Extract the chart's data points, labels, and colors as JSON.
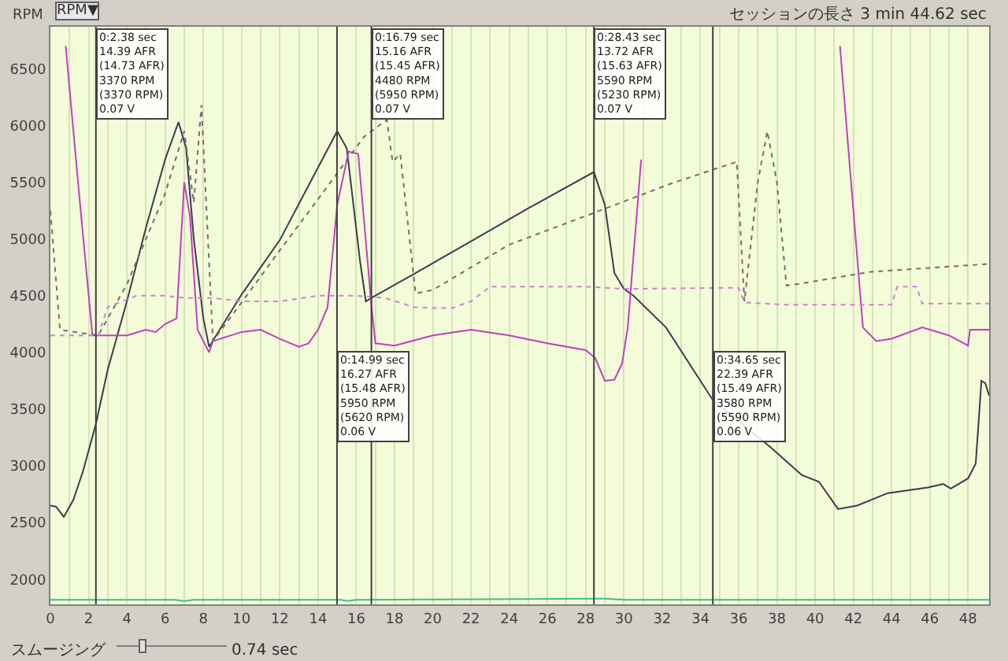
{
  "chart_data": {
    "type": "line",
    "ylabel": "RPM",
    "xlim": [
      0,
      49.1
    ],
    "ylim": [
      1780,
      6870
    ],
    "xticks": [
      0,
      {
        "value": 1,
        "label": null
      },
      2,
      {
        "value": 3,
        "label": null
      },
      4,
      {
        "value": 5,
        "label": null
      },
      6,
      {
        "value": 7,
        "label": null
      },
      8,
      {
        "value": 9,
        "label": null
      },
      10,
      {
        "value": 11,
        "label": null
      },
      12,
      {
        "value": 13,
        "label": null
      },
      14,
      {
        "value": 15,
        "label": null
      },
      16,
      {
        "value": 17,
        "label": null
      },
      18,
      {
        "value": 19,
        "label": null
      },
      20,
      {
        "value": 21,
        "label": null
      },
      22,
      {
        "value": 23,
        "label": null
      },
      24,
      {
        "value": 25,
        "label": null
      },
      26,
      {
        "value": 27,
        "label": null
      },
      28,
      {
        "value": 29,
        "label": null
      },
      30,
      {
        "value": 31,
        "label": null
      },
      32,
      {
        "value": 33,
        "label": null
      },
      34,
      {
        "value": 35,
        "label": null
      },
      36,
      {
        "value": 37,
        "label": null
      },
      38,
      {
        "value": 39,
        "label": null
      },
      40,
      {
        "value": 41,
        "label": null
      },
      42,
      {
        "value": 43,
        "label": null
      },
      44,
      {
        "value": 45,
        "label": null
      },
      46,
      {
        "value": 47,
        "label": null
      },
      48
    ],
    "yticks": [
      2000,
      2500,
      3000,
      3500,
      4000,
      4500,
      5000,
      5500,
      6000,
      6500
    ],
    "grid": "x",
    "series": [
      {
        "color": "#3c3c50",
        "line_style": "solid",
        "x": [
          0,
          0.3,
          0.7,
          1.2,
          1.7,
          2.38,
          3,
          4,
          5,
          6,
          6.7,
          7.1,
          7.5,
          8,
          8.3,
          10,
          12,
          15,
          15.5,
          16.2,
          16.5,
          16.79,
          19,
          22,
          25,
          28.43,
          29,
          29.5,
          30,
          30.5,
          32.2,
          34.65,
          37.7,
          39.3,
          40.2,
          41.2,
          42.2,
          43.8,
          45.9,
          46.7,
          47.1,
          48,
          48.4,
          48.7,
          48.9,
          49.1
        ],
        "values": [
          2650,
          2640,
          2550,
          2700,
          2950,
          3370,
          3850,
          4450,
          5100,
          5700,
          6030,
          5800,
          5000,
          4300,
          4050,
          4510,
          4990,
          5950,
          5800,
          4800,
          4450,
          4480,
          4690,
          4980,
          5270,
          5590,
          5300,
          4700,
          4560,
          4500,
          4220,
          3580,
          3160,
          2920,
          2860,
          2620,
          2650,
          2760,
          2810,
          2840,
          2800,
          2890,
          3020,
          3750,
          3730,
          3620
        ]
      },
      {
        "color": "#c040c0",
        "line_style": "solid",
        "x": [
          0.8,
          1.5,
          2.2,
          3,
          4,
          5,
          5.5,
          6,
          6.6,
          7.0,
          7.3,
          7.7,
          8.3,
          8.5,
          10,
          11,
          12,
          13,
          13.5,
          14,
          14.5,
          15.0,
          15.6,
          16.1,
          16.8,
          17,
          18,
          20,
          22,
          24,
          26,
          28,
          28.5,
          29,
          29.5,
          29.9,
          30.2,
          30.9,
          31.6,
          41.1,
          41.3,
          42.5,
          43.2,
          44,
          45.6,
          47,
          48,
          48.1,
          49.1
        ],
        "values": [
          6700,
          5400,
          4150,
          4150,
          4150,
          4200,
          4180,
          4250,
          4300,
          5500,
          5200,
          4200,
          4000,
          4100,
          4180,
          4200,
          4120,
          4050,
          4080,
          4200,
          4400,
          5300,
          5770,
          5750,
          4400,
          4080,
          4060,
          4150,
          4200,
          4150,
          4080,
          4020,
          3950,
          3750,
          3760,
          3900,
          4220,
          5700,
          null,
          null,
          6700,
          4220,
          4100,
          4120,
          4220,
          4150,
          4060,
          4200,
          4200
        ]
      },
      {
        "color": "#707070",
        "line_style": "dotted",
        "x": [
          0,
          0.5,
          2.5,
          3,
          4,
          5,
          6,
          7.0,
          7.5,
          7.9,
          8.5,
          10,
          12,
          14,
          16.4,
          16.79,
          17.6,
          17.9,
          18.3,
          19.1,
          20,
          24,
          28.43,
          32.5,
          35.9,
          36.3,
          37.0,
          37.5,
          38.0,
          38.5,
          39,
          42.9,
          49.1
        ],
        "values": [
          5250,
          4200,
          4150,
          4300,
          4600,
          5000,
          5400,
          5950,
          5320,
          6180,
          4100,
          4440,
          4900,
          5350,
          5900,
          5950,
          6050,
          5680,
          5750,
          4520,
          4550,
          4950,
          5230,
          5490,
          5680,
          4450,
          5500,
          5950,
          5500,
          4590,
          4600,
          4710,
          4780
        ]
      },
      {
        "color": "#d080d0",
        "line_style": "dotted",
        "x": [
          0,
          2.5,
          3,
          4.5,
          6,
          7,
          8.5,
          10,
          12,
          14,
          16,
          17.5,
          19,
          20,
          21,
          22,
          23,
          28,
          30,
          36,
          36.3,
          38.5,
          44,
          44.3,
          45.3,
          45.6,
          49.1
        ],
        "values": [
          4150,
          4150,
          4400,
          4500,
          4500,
          4480,
          4480,
          4450,
          4450,
          4500,
          4500,
          4480,
          4400,
          4390,
          4390,
          4450,
          4580,
          4580,
          4560,
          4570,
          4440,
          4420,
          4420,
          4580,
          4580,
          4430,
          4430
        ]
      },
      {
        "color": "#40c080",
        "line_style": "solid",
        "x": [
          0,
          6.5,
          7,
          7.5,
          15.2,
          15.5,
          16,
          29,
          30,
          49.1
        ],
        "values": [
          1820,
          1820,
          1810,
          1820,
          1820,
          1810,
          1820,
          1830,
          1820,
          1820
        ]
      }
    ],
    "ref_lines": [
      {
        "axis": "x",
        "value": 2.38,
        "color": "#404040",
        "label": "0:2.38 sec\n14.39 AFR\n(14.73 AFR)\n3370 RPM\n(3370 RPM)\n0.07 V"
      },
      {
        "axis": "x",
        "value": 14.99,
        "color": "#404040",
        "label": "0:14.99 sec\n16.27 AFR\n(15.48 AFR)\n5950 RPM\n(5620 RPM)\n0.06 V"
      },
      {
        "axis": "x",
        "value": 16.79,
        "color": "#404040",
        "label": "0:16.79 sec\n15.16 AFR\n(15.45 AFR)\n4480 RPM\n(5950 RPM)\n0.07 V"
      },
      {
        "axis": "x",
        "value": 28.43,
        "color": "#404040",
        "label": "0:28.43 sec\n13.72 AFR\n(15.63 AFR)\n5590 RPM\n(5230 RPM)\n0.07 V"
      },
      {
        "axis": "x",
        "value": 34.65,
        "color": "#404040",
        "label": "0:34.65 sec\n22.39 AFR\n(15.49 AFR)\n3580 RPM\n(5590 RPM)\n0.06 V"
      }
    ],
    "annotations": [
      "RPM▼",
      "セッションの長さ 3 min 44.62 sec",
      "スムージング",
      "0.74 sec"
    ]
  }
}
